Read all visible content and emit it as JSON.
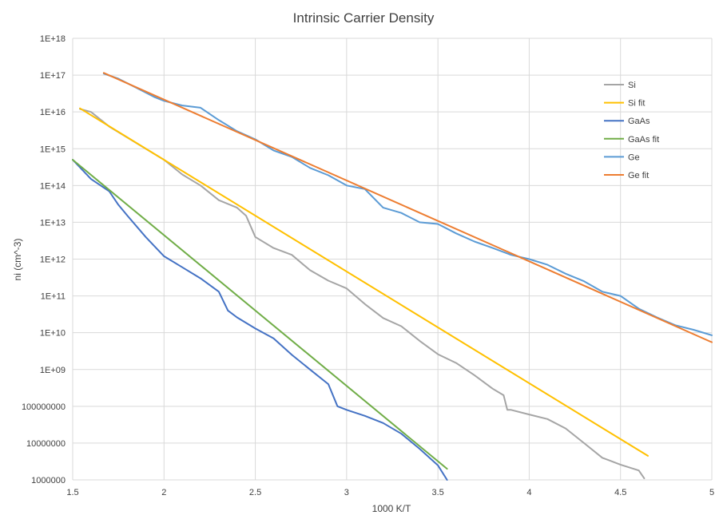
{
  "chart_data": {
    "type": "line",
    "title": "Intrinsic Carrier Density",
    "xlabel": "1000 K/T",
    "ylabel": "ni (cm^-3)",
    "xlim": [
      1.5,
      5
    ],
    "ylim": [
      1000000,
      1e+18
    ],
    "yscale": "log",
    "grid": true,
    "legend_position": "right",
    "x_ticks": [
      "1.5",
      "2",
      "2.5",
      "3",
      "3.5",
      "4",
      "4.5",
      "5"
    ],
    "y_ticks": [
      "1000000",
      "10000000",
      "100000000",
      "1E+09",
      "1E+10",
      "1E+11",
      "1E+12",
      "1E+13",
      "1E+14",
      "1E+15",
      "1E+16",
      "1E+17",
      "1E+18"
    ],
    "series": [
      {
        "name": "Si",
        "color": "#a5a5a5",
        "x": [
          1.54,
          1.6,
          1.7,
          1.8,
          1.9,
          2.0,
          2.1,
          2.2,
          2.3,
          2.4,
          2.45,
          2.5,
          2.6,
          2.7,
          2.8,
          2.9,
          3.0,
          3.1,
          3.2,
          3.3,
          3.4,
          3.5,
          3.6,
          3.7,
          3.8,
          3.86,
          3.88,
          3.9,
          4.0,
          4.1,
          4.2,
          4.3,
          4.4,
          4.5,
          4.6,
          4.63
        ],
        "y": [
          1.2e+16,
          1e+16,
          4000000000000000.0,
          2000000000000000.0,
          1000000000000000.0,
          500000000000000.0,
          200000000000000.0,
          100000000000000.0,
          40000000000000.0,
          25000000000000.0,
          15000000000000.0,
          4000000000000.0,
          2000000000000.0,
          1300000000000.0,
          500000000000.0,
          260000000000.0,
          160000000000.0,
          60000000000.0,
          25000000000.0,
          15000000000.0,
          6000000000.0,
          2600000000.0,
          1500000000.0,
          700000000.0,
          300000000.0,
          200000000.0,
          80000000.0,
          80000000.0,
          60000000.0,
          45000000.0,
          25000000.0,
          10000000.0,
          4000000.0,
          2600000.0,
          1800000.0,
          1100000.0
        ]
      },
      {
        "name": "Si fit",
        "color": "#ffc000",
        "x": [
          1.54,
          4.65
        ],
        "y": [
          1.25e+16,
          4500000.0
        ]
      },
      {
        "name": "GaAs",
        "color": "#4472c4",
        "x": [
          1.5,
          1.6,
          1.7,
          1.75,
          1.8,
          1.9,
          2.0,
          2.1,
          2.2,
          2.3,
          2.35,
          2.4,
          2.5,
          2.6,
          2.7,
          2.8,
          2.9,
          2.95,
          3.0,
          3.1,
          3.2,
          3.3,
          3.4,
          3.5,
          3.55
        ],
        "y": [
          500000000000000.0,
          150000000000000.0,
          70000000000000.0,
          30000000000000.0,
          15000000000000.0,
          4000000000000.0,
          1200000000000.0,
          600000000000.0,
          300000000000.0,
          130000000000.0,
          40000000000.0,
          26000000000.0,
          13000000000.0,
          7000000000.0,
          2500000000.0,
          1000000000.0,
          400000000.0,
          100000000.0,
          80000000.0,
          55000000.0,
          35000000.0,
          18000000.0,
          7000000.0,
          2500000.0,
          1000000.0
        ]
      },
      {
        "name": "GaAs fit",
        "color": "#70ad47",
        "x": [
          1.5,
          3.55
        ],
        "y": [
          500000000000000.0,
          2000000.0
        ]
      },
      {
        "name": "Ge",
        "color": "#5b9bd5",
        "x": [
          1.67,
          1.75,
          1.85,
          1.95,
          2.0,
          2.1,
          2.2,
          2.3,
          2.4,
          2.5,
          2.6,
          2.7,
          2.8,
          2.9,
          3.0,
          3.1,
          3.2,
          3.3,
          3.4,
          3.5,
          3.6,
          3.7,
          3.8,
          3.9,
          4.0,
          4.1,
          4.2,
          4.3,
          4.4,
          4.5,
          4.6,
          4.7,
          4.8,
          4.9,
          5.0
        ],
        "y": [
          1.1e+17,
          8e+16,
          4.5e+16,
          2.5e+16,
          2e+16,
          1.5e+16,
          1.3e+16,
          6000000000000000.0,
          3000000000000000.0,
          1800000000000000.0,
          900000000000000.0,
          600000000000000.0,
          300000000000000.0,
          190000000000000.0,
          100000000000000.0,
          80000000000000.0,
          25000000000000.0,
          18000000000000.0,
          10000000000000.0,
          9000000000000.0,
          5000000000000.0,
          3000000000000.0,
          2000000000000.0,
          1300000000000.0,
          1000000000000.0,
          700000000000.0,
          400000000000.0,
          250000000000.0,
          130000000000.0,
          100000000000.0,
          45000000000.0,
          26000000000.0,
          16000000000.0,
          12000000000.0,
          8500000000.0
        ]
      },
      {
        "name": "Ge fit",
        "color": "#ed7d31",
        "x": [
          1.67,
          5.0
        ],
        "y": [
          1.15e+17,
          5500000000.0
        ]
      }
    ]
  }
}
